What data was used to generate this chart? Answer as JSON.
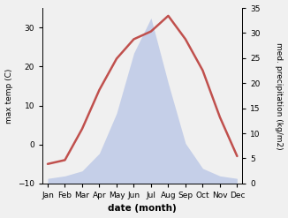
{
  "months": [
    "Jan",
    "Feb",
    "Mar",
    "Apr",
    "May",
    "Jun",
    "Jul",
    "Aug",
    "Sep",
    "Oct",
    "Nov",
    "Dec"
  ],
  "temp": [
    -5,
    -4,
    4,
    14,
    22,
    27,
    29,
    33,
    27,
    19,
    7,
    -3
  ],
  "precip": [
    1.0,
    1.5,
    2.5,
    6,
    14,
    26,
    33,
    20,
    8,
    3,
    1.5,
    1.0
  ],
  "temp_color": "#c0504d",
  "precip_color": "#c5cfe8",
  "left_ylabel": "max temp (C)",
  "right_ylabel": "med. precipitation (kg/m2)",
  "xlabel": "date (month)",
  "ylim_left": [
    -10,
    35
  ],
  "ylim_right": [
    0,
    35
  ],
  "yticks_left": [
    -10,
    0,
    10,
    20,
    30
  ],
  "yticks_right": [
    0,
    5,
    10,
    15,
    20,
    25,
    30,
    35
  ],
  "bg_color": "#f0f0f0",
  "line_width": 1.8,
  "figsize": [
    3.26,
    2.47
  ],
  "dpi": 100
}
